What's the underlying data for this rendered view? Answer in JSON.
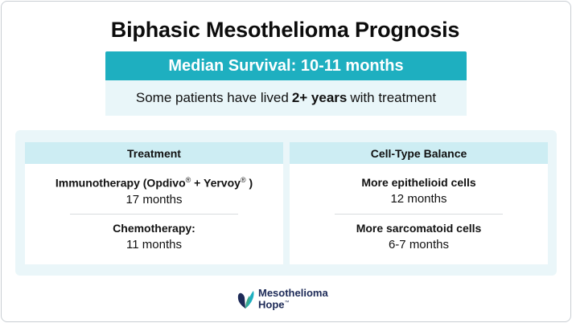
{
  "title": "Biphasic Mesothelioma Prognosis",
  "banner": {
    "median_survival": "Median Survival: 10-11 months",
    "note_prefix": "Some patients have lived",
    "note_bold": "2+ years",
    "note_suffix": "with treatment"
  },
  "treatment_card": {
    "header": "Treatment",
    "items": [
      {
        "label_prefix": "Immunotherapy (Opdivo",
        "reg1": "®",
        "label_mid": " + Yervoy",
        "reg2": "®",
        "label_suffix": " )",
        "value": "17 months"
      },
      {
        "label": "Chemotherapy:",
        "value": "11 months"
      }
    ]
  },
  "cell_card": {
    "header": "Cell-Type Balance",
    "items": [
      {
        "label": "More epithelioid cells",
        "value": "12 months"
      },
      {
        "label": "More sarcomatoid cells",
        "value": "6-7 months"
      }
    ]
  },
  "logo": {
    "line1": "Mesothelioma",
    "line2": "Hope",
    "tm": "™"
  },
  "colors": {
    "banner": "#1eafc0",
    "subbanner": "#e9f6f9",
    "panel": "#eaf6f9",
    "card_header": "#cdedf3",
    "logo_text": "#1d2a57"
  }
}
